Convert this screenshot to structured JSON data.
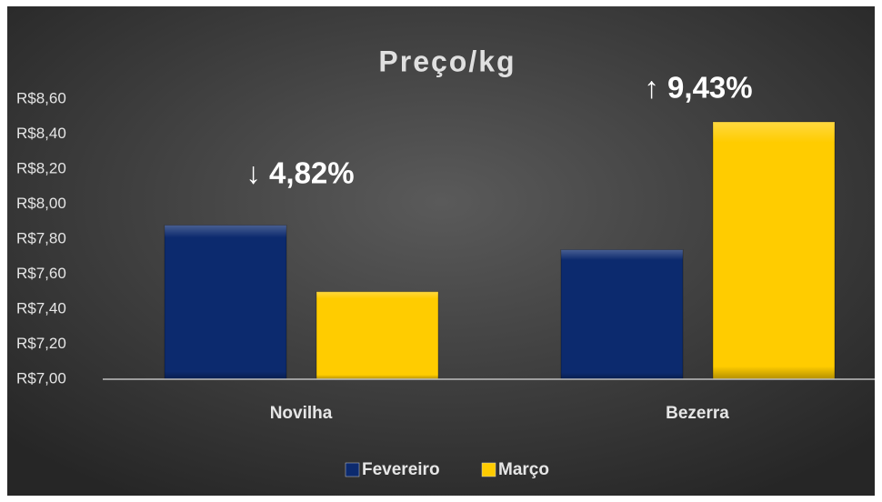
{
  "chart_data": {
    "type": "bar",
    "title": "Preço/kg",
    "categories": [
      "Novilha",
      "Bezerra"
    ],
    "series": [
      {
        "name": "Fevereiro",
        "color": "#0c2a6e",
        "values": [
          7.88,
          7.74
        ]
      },
      {
        "name": "Março",
        "color": "#ffcc00",
        "values": [
          7.5,
          8.47
        ]
      }
    ],
    "annotations": [
      "↓ 4,82%",
      "↑ 9,43%"
    ],
    "ylim": [
      7.0,
      8.6
    ],
    "yticks": [
      {
        "value": 7.0,
        "label": "R$7,00"
      },
      {
        "value": 7.2,
        "label": "R$7,20"
      },
      {
        "value": 7.4,
        "label": "R$7,40"
      },
      {
        "value": 7.6,
        "label": "R$7,60"
      },
      {
        "value": 7.8,
        "label": "R$7,80"
      },
      {
        "value": 8.0,
        "label": "R$8,00"
      },
      {
        "value": 8.2,
        "label": "R$8,20"
      },
      {
        "value": 8.4,
        "label": "R$8,40"
      },
      {
        "value": 8.6,
        "label": "R$8,60"
      }
    ],
    "grid": false,
    "legend": "bottom"
  }
}
